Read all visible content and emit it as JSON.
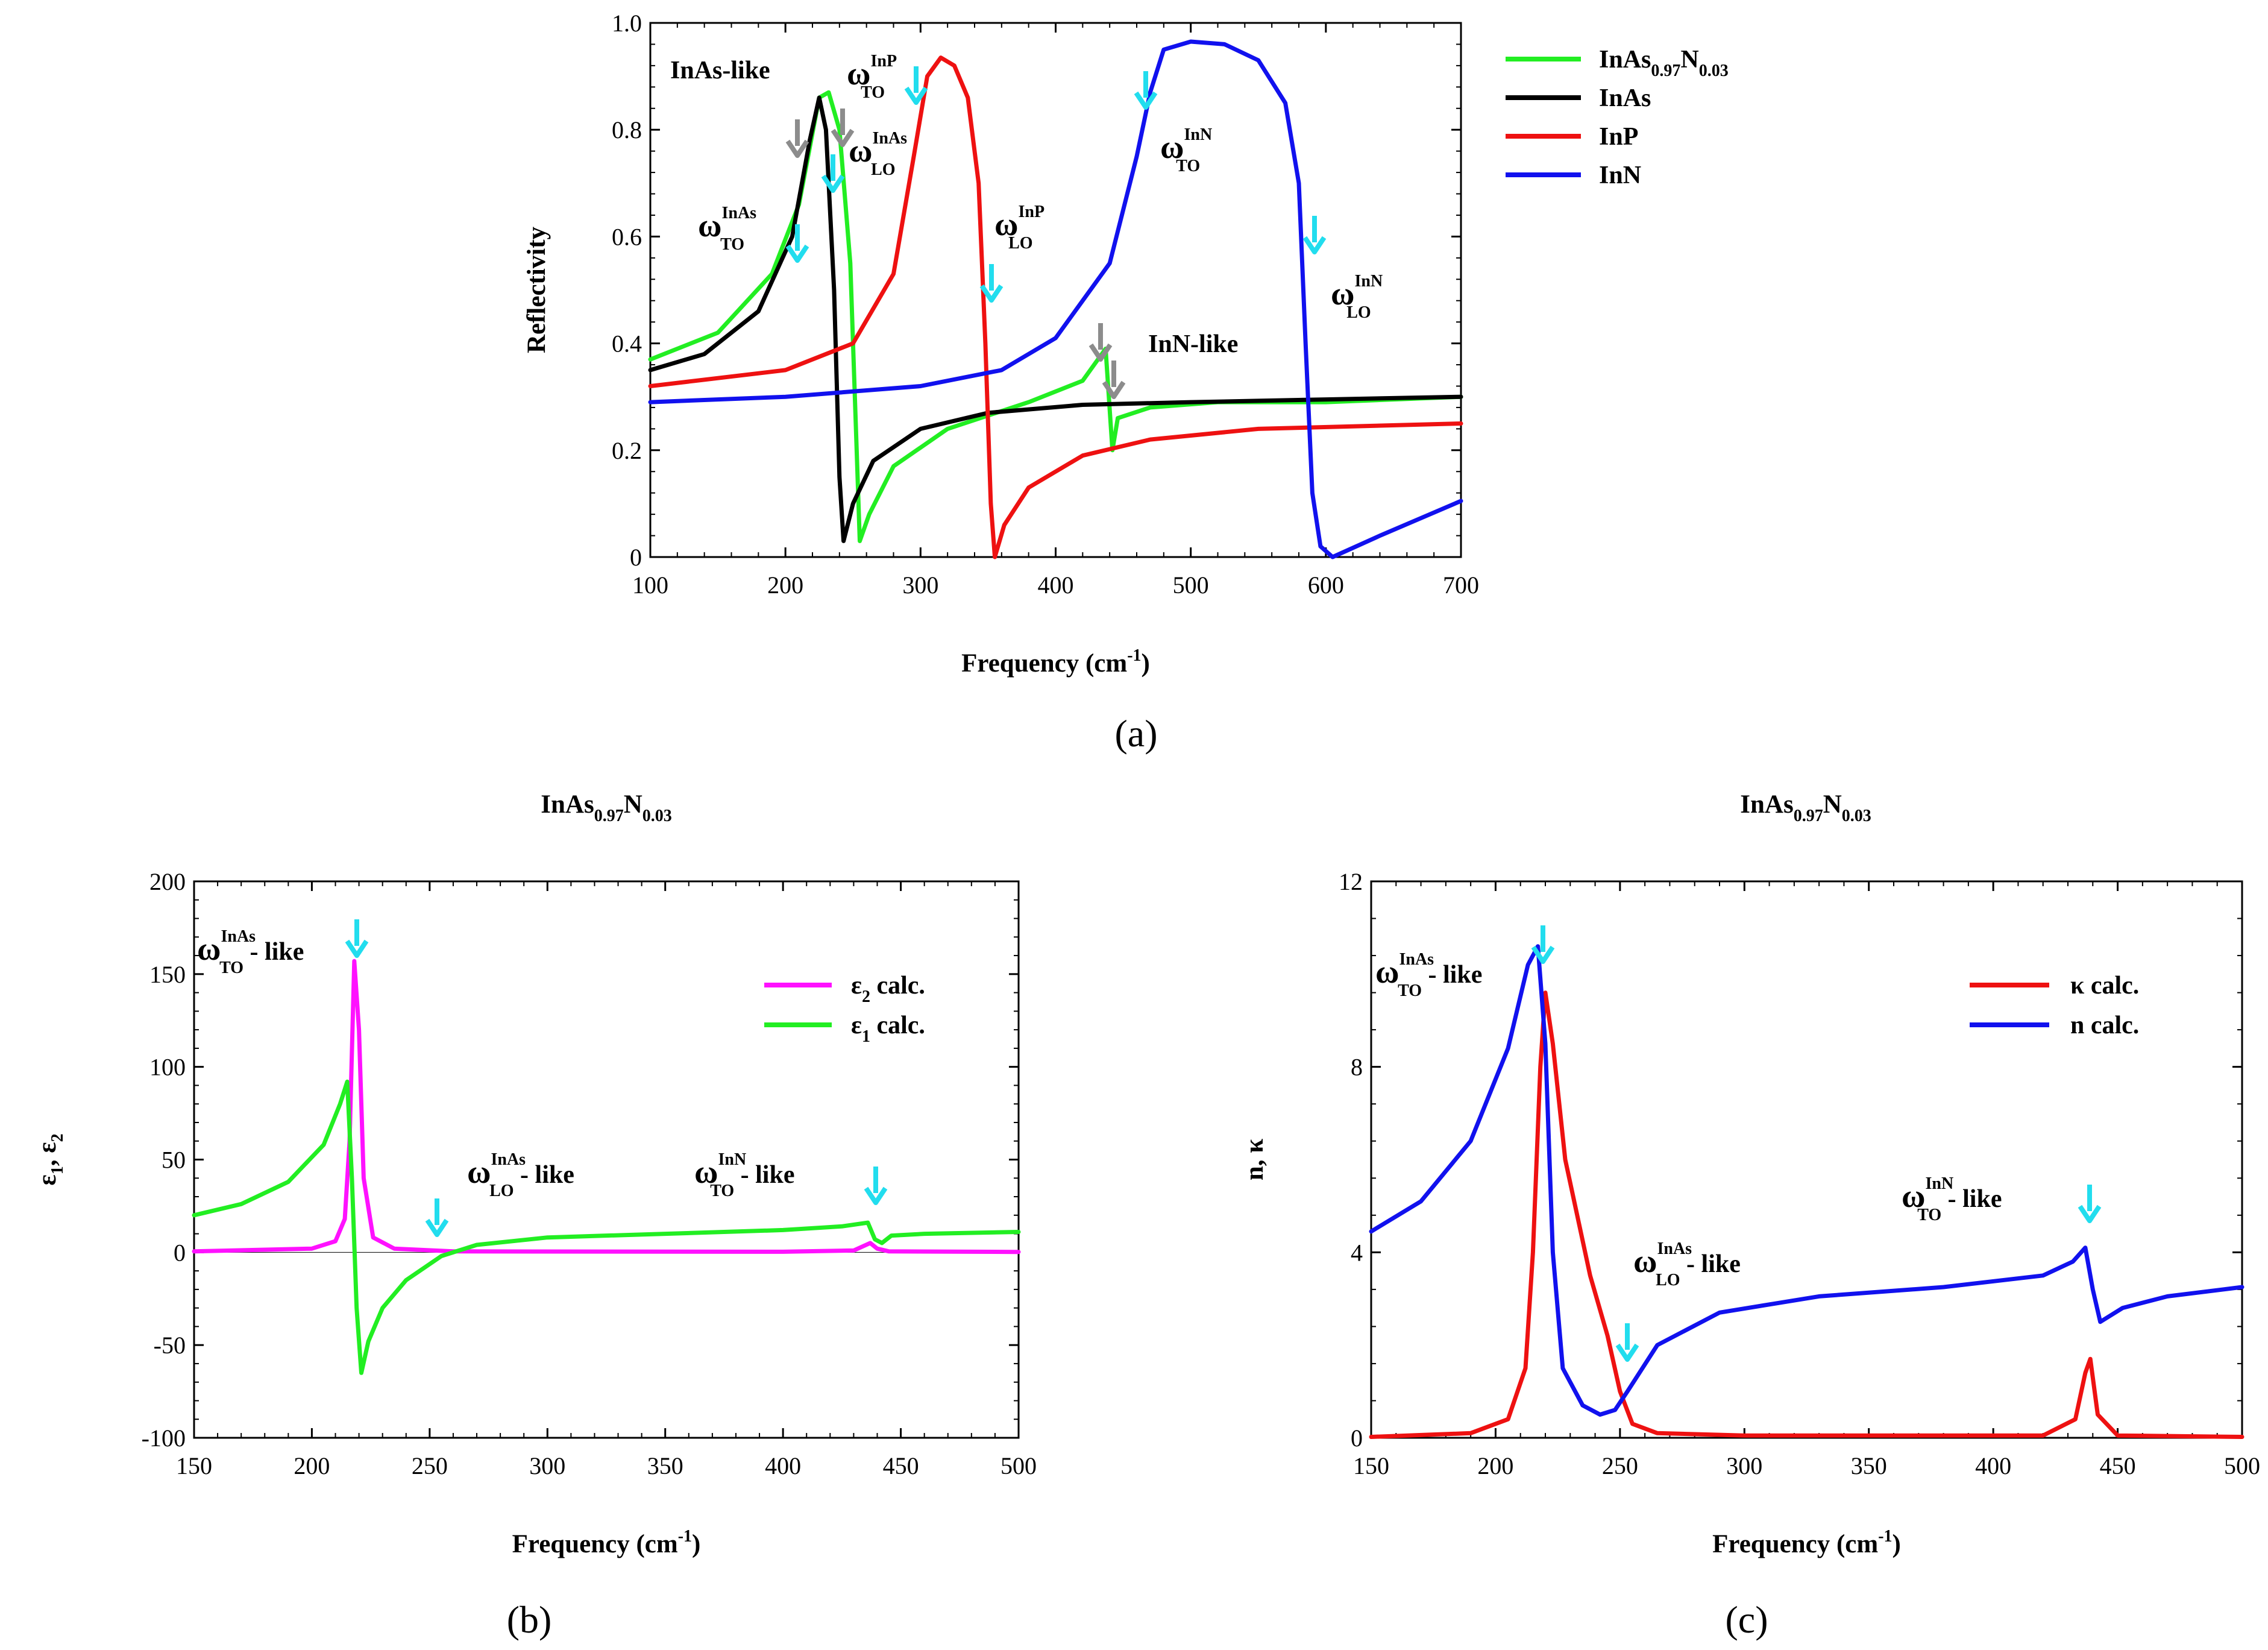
{
  "colors": {
    "green": "#22ee22",
    "black": "#000000",
    "red": "#ee1111",
    "blue": "#1111ee",
    "magenta": "#ff11ff",
    "cyan": "#22ddee",
    "gray": "#8c8c8c"
  },
  "panels": {
    "a": "(a)",
    "b": "(b)",
    "c": "(c)"
  },
  "chart_data": [
    {
      "id": "a",
      "type": "line",
      "title": "",
      "xlabel": "Frequency (cm",
      "xlabel_sup": "-1",
      "xlabel_end": ")",
      "ylabel": "Reflectivity",
      "xlim": [
        100,
        700
      ],
      "ylim": [
        0,
        1
      ],
      "xticks": [
        "100",
        "200",
        "300",
        "400",
        "500",
        "600",
        "700"
      ],
      "yticks": [
        "0",
        "0.2",
        "0.4",
        "0.6",
        "0.8",
        "1.0"
      ],
      "legend_position": "top-right",
      "legend": [
        {
          "name": "InAs",
          "sub1": "0.97",
          "mid": "N",
          "sub2": "0.03",
          "color": "green"
        },
        {
          "name": "InAs",
          "color": "black"
        },
        {
          "name": "InP",
          "color": "red"
        },
        {
          "name": "InN",
          "color": "blue"
        }
      ],
      "series": [
        {
          "name": "InAs0.97N0.03",
          "color": "green",
          "points": [
            [
              100,
              0.37
            ],
            [
              150,
              0.42
            ],
            [
              190,
              0.53
            ],
            [
              210,
              0.66
            ],
            [
              225,
              0.86
            ],
            [
              232,
              0.87
            ],
            [
              240,
              0.8
            ],
            [
              248,
              0.55
            ],
            [
              255,
              0.03
            ],
            [
              262,
              0.08
            ],
            [
              280,
              0.17
            ],
            [
              320,
              0.24
            ],
            [
              380,
              0.29
            ],
            [
              420,
              0.33
            ],
            [
              437,
              0.39
            ],
            [
              442,
              0.2
            ],
            [
              446,
              0.26
            ],
            [
              470,
              0.28
            ],
            [
              520,
              0.29
            ],
            [
              600,
              0.29
            ],
            [
              700,
              0.3
            ]
          ]
        },
        {
          "name": "InAs",
          "color": "black",
          "points": [
            [
              100,
              0.35
            ],
            [
              140,
              0.38
            ],
            [
              180,
              0.46
            ],
            [
              205,
              0.6
            ],
            [
              218,
              0.78
            ],
            [
              225,
              0.86
            ],
            [
              230,
              0.8
            ],
            [
              236,
              0.5
            ],
            [
              240,
              0.15
            ],
            [
              243,
              0.03
            ],
            [
              250,
              0.1
            ],
            [
              265,
              0.18
            ],
            [
              300,
              0.24
            ],
            [
              350,
              0.27
            ],
            [
              420,
              0.285
            ],
            [
              500,
              0.29
            ],
            [
              600,
              0.295
            ],
            [
              700,
              0.3
            ]
          ]
        },
        {
          "name": "InP",
          "color": "red",
          "points": [
            [
              100,
              0.32
            ],
            [
              200,
              0.35
            ],
            [
              250,
              0.4
            ],
            [
              280,
              0.53
            ],
            [
              295,
              0.75
            ],
            [
              305,
              0.9
            ],
            [
              315,
              0.935
            ],
            [
              325,
              0.92
            ],
            [
              335,
              0.86
            ],
            [
              343,
              0.7
            ],
            [
              348,
              0.4
            ],
            [
              352,
              0.1
            ],
            [
              355,
              0.0
            ],
            [
              362,
              0.06
            ],
            [
              380,
              0.13
            ],
            [
              420,
              0.19
            ],
            [
              470,
              0.22
            ],
            [
              550,
              0.24
            ],
            [
              700,
              0.25
            ]
          ]
        },
        {
          "name": "InN",
          "color": "blue",
          "points": [
            [
              100,
              0.29
            ],
            [
              200,
              0.3
            ],
            [
              300,
              0.32
            ],
            [
              360,
              0.35
            ],
            [
              400,
              0.41
            ],
            [
              440,
              0.55
            ],
            [
              460,
              0.75
            ],
            [
              470,
              0.87
            ],
            [
              480,
              0.95
            ],
            [
              500,
              0.965
            ],
            [
              525,
              0.96
            ],
            [
              550,
              0.93
            ],
            [
              570,
              0.85
            ],
            [
              580,
              0.7
            ],
            [
              585,
              0.4
            ],
            [
              590,
              0.12
            ],
            [
              596,
              0.02
            ],
            [
              605,
              0.0
            ],
            [
              640,
              0.04
            ],
            [
              700,
              0.105
            ]
          ]
        }
      ],
      "annotations": [
        {
          "text": "InAs-like"
        },
        {
          "text": "InN-like"
        },
        {
          "text": "ω",
          "sup": "InAs",
          "sub": "TO"
        },
        {
          "text": "ω",
          "sup": "InAs",
          "sub": "LO"
        },
        {
          "text": "ω",
          "sup": "InP",
          "sub": "TO"
        },
        {
          "text": "ω",
          "sup": "InP",
          "sub": "LO"
        },
        {
          "text": "ω",
          "sup": "InN",
          "sub": "TO"
        },
        {
          "text": "ω",
          "sup": "InN",
          "sub": "LO"
        }
      ]
    },
    {
      "id": "b",
      "type": "line",
      "title": "InAs",
      "title_sub1": "0.97",
      "title_mid": "N",
      "title_sub2": "0.03",
      "xlabel": "Frequency (cm",
      "xlabel_sup": "-1",
      "xlabel_end": ")",
      "ylabel": "ε",
      "ylabel_sub1": "1",
      "ylabel_mid": ", ε",
      "ylabel_sub2": "2",
      "xlim": [
        150,
        500
      ],
      "ylim": [
        -100,
        200
      ],
      "xticks": [
        "150",
        "200",
        "250",
        "300",
        "350",
        "400",
        "450",
        "500"
      ],
      "yticks": [
        "-100",
        "-50",
        "0",
        "50",
        "100",
        "150",
        "200"
      ],
      "legend_position": "top-right",
      "legend": [
        {
          "name": "ε",
          "sub": "2",
          "suffix": "calc.",
          "color": "magenta"
        },
        {
          "name": "ε",
          "sub": "1",
          "suffix": "calc.",
          "color": "green"
        }
      ],
      "series": [
        {
          "name": "ε2 calc.",
          "color": "magenta",
          "points": [
            [
              150,
              0.5
            ],
            [
              200,
              2
            ],
            [
              210,
              6
            ],
            [
              214,
              18
            ],
            [
              216,
              60
            ],
            [
              218,
              157
            ],
            [
              220,
              120
            ],
            [
              222,
              40
            ],
            [
              226,
              8
            ],
            [
              235,
              2
            ],
            [
              260,
              0.5
            ],
            [
              400,
              0.3
            ],
            [
              430,
              1
            ],
            [
              437,
              5
            ],
            [
              440,
              2
            ],
            [
              445,
              0.5
            ],
            [
              500,
              0.2
            ]
          ]
        },
        {
          "name": "ε1 calc.",
          "color": "green",
          "points": [
            [
              150,
              20
            ],
            [
              170,
              26
            ],
            [
              190,
              38
            ],
            [
              205,
              58
            ],
            [
              212,
              80
            ],
            [
              215,
              92
            ],
            [
              217,
              40
            ],
            [
              219,
              -30
            ],
            [
              221,
              -65
            ],
            [
              224,
              -48
            ],
            [
              230,
              -30
            ],
            [
              240,
              -15
            ],
            [
              255,
              -2
            ],
            [
              270,
              4
            ],
            [
              300,
              8
            ],
            [
              350,
              10
            ],
            [
              400,
              12
            ],
            [
              425,
              14
            ],
            [
              436,
              16
            ],
            [
              439,
              7
            ],
            [
              442,
              5
            ],
            [
              446,
              9
            ],
            [
              460,
              10
            ],
            [
              500,
              11
            ]
          ]
        }
      ],
      "annotations": [
        {
          "text": "ω",
          "sup": "InAs",
          "sub": "TO",
          "suffix": " - like"
        },
        {
          "text": "ω",
          "sup": "InAs",
          "sub": "LO",
          "suffix": " - like"
        },
        {
          "text": "ω",
          "sup": "InN",
          "sub": "TO",
          "suffix": " - like"
        }
      ]
    },
    {
      "id": "c",
      "type": "line",
      "title": "InAs",
      "title_sub1": "0.97",
      "title_mid": "N",
      "title_sub2": "0.03",
      "xlabel": "Frequency (cm",
      "xlabel_sup": "-1",
      "xlabel_end": ")",
      "ylabel": "n, κ",
      "xlim": [
        150,
        500
      ],
      "ylim": [
        0,
        12
      ],
      "xticks": [
        "150",
        "200",
        "250",
        "300",
        "350",
        "400",
        "450",
        "500"
      ],
      "yticks": [
        "0",
        "4",
        "8",
        "12"
      ],
      "legend_position": "top-right",
      "legend": [
        {
          "name": "κ",
          "suffix": "calc.",
          "color": "red"
        },
        {
          "name": "n",
          "suffix": "calc.",
          "color": "blue"
        }
      ],
      "series": [
        {
          "name": "κ calc.",
          "color": "red",
          "points": [
            [
              150,
              0.02
            ],
            [
              190,
              0.1
            ],
            [
              205,
              0.4
            ],
            [
              212,
              1.5
            ],
            [
              215,
              4
            ],
            [
              218,
              8
            ],
            [
              220,
              9.6
            ],
            [
              223,
              8.5
            ],
            [
              228,
              6
            ],
            [
              238,
              3.5
            ],
            [
              245,
              2.2
            ],
            [
              250,
              1.0
            ],
            [
              255,
              0.3
            ],
            [
              265,
              0.1
            ],
            [
              300,
              0.05
            ],
            [
              420,
              0.05
            ],
            [
              433,
              0.4
            ],
            [
              437,
              1.4
            ],
            [
              439,
              1.7
            ],
            [
              442,
              0.5
            ],
            [
              450,
              0.05
            ],
            [
              500,
              0.02
            ]
          ]
        },
        {
          "name": "n calc.",
          "color": "blue",
          "points": [
            [
              150,
              4.45
            ],
            [
              170,
              5.1
            ],
            [
              190,
              6.4
            ],
            [
              205,
              8.4
            ],
            [
              213,
              10.2
            ],
            [
              217,
              10.6
            ],
            [
              220,
              8.5
            ],
            [
              223,
              4
            ],
            [
              227,
              1.5
            ],
            [
              235,
              0.7
            ],
            [
              242,
              0.5
            ],
            [
              248,
              0.6
            ],
            [
              253,
              1.0
            ],
            [
              265,
              2.0
            ],
            [
              290,
              2.7
            ],
            [
              330,
              3.05
            ],
            [
              380,
              3.25
            ],
            [
              420,
              3.5
            ],
            [
              432,
              3.8
            ],
            [
              437,
              4.1
            ],
            [
              440,
              3.2
            ],
            [
              443,
              2.5
            ],
            [
              452,
              2.8
            ],
            [
              470,
              3.05
            ],
            [
              500,
              3.25
            ]
          ]
        }
      ],
      "annotations": [
        {
          "text": "ω",
          "sup": "InAs",
          "sub": "TO",
          "suffix": " - like"
        },
        {
          "text": "ω",
          "sup": "InAs",
          "sub": "LO",
          "suffix": " - like"
        },
        {
          "text": "ω",
          "sup": "InN",
          "sub": "TO",
          "suffix": " - like"
        }
      ]
    }
  ]
}
